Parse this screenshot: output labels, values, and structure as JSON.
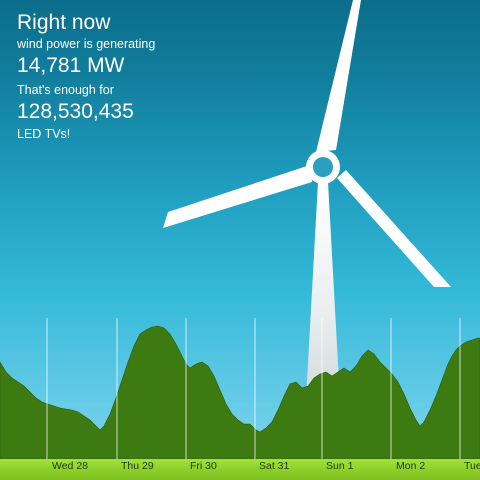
{
  "widget": {
    "headline": "Right now",
    "generating_label": "wind power is generating",
    "power_value": "14,781 MW",
    "enough_label": "That's enough for",
    "count_value": "128,530,435",
    "unit_label": "LED TVs!"
  },
  "timeline": {
    "days": [
      "Wed 28",
      "Thu 29",
      "Fri 30",
      "Sat 31",
      "Sun 1",
      "Mon 2",
      "Tue"
    ]
  },
  "colors": {
    "sky_top": "#0b6d8b",
    "sky_bottom": "#8ad6ee",
    "area_fill": "#3d7a12",
    "ground": "#8fd12b",
    "turbine": "#ffffff"
  },
  "icons": {
    "turbine": "wind-turbine-icon"
  }
}
